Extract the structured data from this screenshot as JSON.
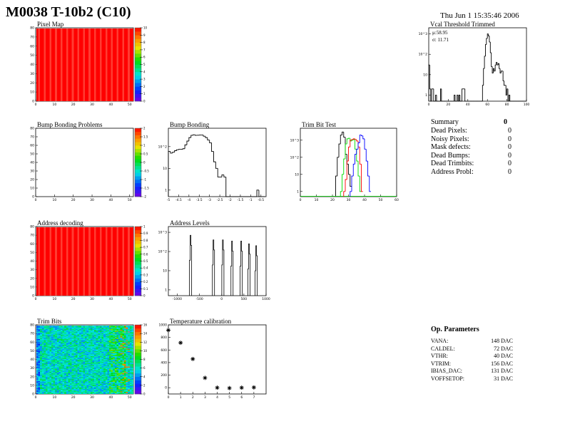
{
  "header": {
    "title": "M0038 T-10b2 (C10)",
    "date": "Thu Jun  1 15:35:46 2006"
  },
  "summary": {
    "title": "Summary",
    "total": "0",
    "rows": [
      {
        "label": "Dead Pixels:",
        "value": "0"
      },
      {
        "label": "Noisy Pixels:",
        "value": "0"
      },
      {
        "label": "Mask defects:",
        "value": "0"
      },
      {
        "label": "Dead Bumps:",
        "value": "0"
      },
      {
        "label": "Dead Trimbits:",
        "value": "0"
      },
      {
        "label": "Address Probl:",
        "value": "0"
      }
    ]
  },
  "op_parameters": {
    "title": "Op. Parameters",
    "rows": [
      {
        "label": "VANA:",
        "value": "148 DAC"
      },
      {
        "label": "CALDEL:",
        "value": "72 DAC"
      },
      {
        "label": "VTHR:",
        "value": "40 DAC"
      },
      {
        "label": "VTRIM:",
        "value": "156 DAC"
      },
      {
        "label": "IBIAS_DAC:",
        "value": "131 DAC"
      },
      {
        "label": "VOFFSETOP:",
        "value": "31 DAC"
      }
    ]
  },
  "chart_data": [
    {
      "id": "pixel-map",
      "type": "heatmap",
      "title": "Pixel Map",
      "xlim": [
        0,
        52
      ],
      "ylim": [
        0,
        80
      ],
      "xticks": [
        "0",
        "10",
        "20",
        "30",
        "40",
        "50"
      ],
      "yticks": [
        "0",
        "10",
        "20",
        "30",
        "40",
        "50",
        "60",
        "70",
        "80"
      ],
      "zlim": [
        0,
        10
      ],
      "zticks": [
        "0",
        "1",
        "2",
        "3",
        "4",
        "5",
        "6",
        "7",
        "8",
        "9",
        "10"
      ],
      "fill": "uniform",
      "value": 10
    },
    {
      "id": "vcal-threshold",
      "type": "bar",
      "title": "Vcal Threshold Trimmed",
      "xlim": [
        0,
        100
      ],
      "ylog": true,
      "ylim": [
        0.5,
        2000
      ],
      "xticks": [
        "0",
        "20",
        "40",
        "60",
        "80",
        "100"
      ],
      "yticks": [
        "1",
        "10",
        "10^2",
        "10^3"
      ],
      "stats": {
        "mean": "μ:58.95",
        "sigma": "σ: 11.71"
      },
      "series": [
        {
          "color": "#000000",
          "x0": 0,
          "width": 1,
          "values": [
            30,
            2,
            0,
            2,
            2,
            0,
            0,
            1,
            0,
            0,
            0,
            0,
            2,
            0,
            0,
            0,
            0,
            0,
            0,
            0,
            0,
            0,
            0,
            0,
            0,
            0,
            1,
            0,
            0,
            1,
            0,
            1,
            0,
            0,
            2,
            2,
            2,
            0,
            0,
            0,
            0,
            0,
            0,
            0,
            0,
            0,
            0,
            0,
            0,
            0,
            0,
            0,
            0,
            0,
            0,
            3,
            20,
            80,
            300,
            600,
            1000,
            800,
            400,
            120,
            25,
            12,
            20,
            15,
            30,
            40,
            30,
            35,
            20,
            12,
            15,
            15,
            5,
            3,
            3,
            1,
            2,
            0,
            1,
            0,
            0,
            0,
            0,
            0,
            0,
            0,
            0,
            0,
            0,
            0,
            0,
            0,
            0,
            0,
            0,
            0
          ]
        }
      ]
    },
    {
      "id": "bump-bonding-problems",
      "type": "heatmap",
      "title": "Bump Bonding Problems",
      "xlim": [
        0,
        52
      ],
      "ylim": [
        0,
        80
      ],
      "xticks": [
        "0",
        "10",
        "20",
        "30",
        "40",
        "50"
      ],
      "yticks": [
        "0",
        "10",
        "20",
        "30",
        "40",
        "50",
        "60",
        "70",
        "80"
      ],
      "zlim": [
        -2,
        2
      ],
      "zticks": [
        "-2",
        "-1.5",
        "-1",
        "-0.5",
        "0",
        "0.5",
        "1",
        "1.5",
        "2"
      ],
      "fill": "empty"
    },
    {
      "id": "bump-bonding",
      "type": "bar",
      "title": "Bump Bonding",
      "xlim": [
        -5,
        -0.25
      ],
      "ylog": true,
      "ylim": [
        0.5,
        700
      ],
      "xticks": [
        "-5",
        "-4.5",
        "-4",
        "-3.5",
        "-3",
        "-2.5",
        "-2",
        "-1.5",
        "-1",
        "-0.5"
      ],
      "yticks": [
        "1",
        "10",
        "10^2"
      ],
      "series": [
        {
          "color": "#000000",
          "x0": -5,
          "width": 0.1,
          "values": [
            60,
            50,
            55,
            65,
            72,
            75,
            75,
            80,
            120,
            180,
            260,
            330,
            350,
            330,
            335,
            340,
            340,
            300,
            260,
            200,
            150,
            60,
            20,
            10,
            4,
            4,
            5,
            4,
            0,
            0,
            0,
            0,
            0,
            0,
            0,
            0,
            0,
            0,
            0,
            0,
            0,
            0,
            0,
            1,
            0,
            0,
            0
          ]
        }
      ]
    },
    {
      "id": "trim-bit-test",
      "type": "bar",
      "title": "Trim Bit Test",
      "xlim": [
        0,
        60
      ],
      "ylog": true,
      "ylim": [
        0.5,
        5000
      ],
      "xticks": [
        "0",
        "10",
        "20",
        "30",
        "40",
        "50",
        "60"
      ],
      "yticks": [
        "1",
        "10",
        "10^2",
        "10^3"
      ],
      "series": [
        {
          "color": "#000000",
          "x0": 22,
          "width": 1,
          "values": [
            8,
            100,
            600,
            2000,
            3000,
            1500,
            150,
            40,
            10,
            2
          ]
        },
        {
          "color": "#00dd00",
          "x0": 25,
          "width": 1,
          "values": [
            1,
            10,
            80,
            600,
            1200,
            1300,
            900,
            1000,
            1100,
            300,
            60,
            8,
            1
          ]
        },
        {
          "color": "#ff0000",
          "x0": 27,
          "width": 1,
          "values": [
            1,
            5,
            60,
            400,
            1000,
            1100,
            1200,
            1100,
            900,
            400,
            40,
            1
          ]
        },
        {
          "color": "#0000ff",
          "x0": 31,
          "width": 1,
          "values": [
            1,
            8,
            40,
            150,
            300,
            700,
            2000,
            1800,
            1200,
            300,
            60,
            8,
            1
          ]
        }
      ]
    },
    {
      "id": "address-decoding",
      "type": "heatmap",
      "title": "Address decoding",
      "xlim": [
        0,
        52
      ],
      "ylim": [
        0,
        80
      ],
      "xticks": [
        "0",
        "10",
        "20",
        "30",
        "40",
        "50"
      ],
      "yticks": [
        "0",
        "10",
        "20",
        "30",
        "40",
        "50",
        "60",
        "70",
        "80"
      ],
      "zlim": [
        0,
        1
      ],
      "zticks": [
        "0",
        "0.1",
        "0.2",
        "0.3",
        "0.4",
        "0.5",
        "0.6",
        "0.7",
        "0.8",
        "0.9",
        "1"
      ],
      "fill": "uniform",
      "value": 1
    },
    {
      "id": "address-levels",
      "type": "bar",
      "title": "Address Levels",
      "xlim": [
        -1200,
        1000
      ],
      "ylog": true,
      "ylim": [
        0.5,
        2000
      ],
      "xticks": [
        "-1000",
        "-500",
        "0",
        "500",
        "1000"
      ],
      "yticks": [
        "1",
        "10",
        "10^2",
        "10^3"
      ],
      "peaks": [
        {
          "x": -700,
          "y": 700
        },
        {
          "x": -185,
          "y": 400
        },
        {
          "x": 27,
          "y": 400
        },
        {
          "x": 233,
          "y": 350
        },
        {
          "x": 440,
          "y": 350
        },
        {
          "x": 614,
          "y": 250
        },
        {
          "x": 777,
          "y": 200
        }
      ]
    },
    {
      "id": "trim-bits",
      "type": "heatmap",
      "title": "Trim Bits",
      "xlim": [
        0,
        52
      ],
      "ylim": [
        0,
        80
      ],
      "xticks": [
        "0",
        "10",
        "20",
        "30",
        "40",
        "50"
      ],
      "yticks": [
        "0",
        "10",
        "20",
        "30",
        "40",
        "50",
        "60",
        "70",
        "80"
      ],
      "zlim": [
        0,
        16
      ],
      "zticks": [
        "0",
        "2",
        "4",
        "6",
        "8",
        "10",
        "12",
        "14",
        "16"
      ],
      "fill": "noisy",
      "value": 6
    },
    {
      "id": "temperature-calibration",
      "type": "scatter",
      "title": "Temperature calibration",
      "xlim": [
        0,
        8
      ],
      "ylim": [
        -100,
        1000
      ],
      "xticks": [
        "0",
        "1",
        "2",
        "3",
        "4",
        "5",
        "6",
        "7"
      ],
      "yticks": [
        "0",
        "200",
        "400",
        "600",
        "800",
        "1000"
      ],
      "x": [
        0,
        1,
        2,
        3,
        4,
        5,
        6,
        7
      ],
      "y": [
        915,
        715,
        457,
        156,
        0,
        -7,
        0,
        4
      ]
    }
  ]
}
